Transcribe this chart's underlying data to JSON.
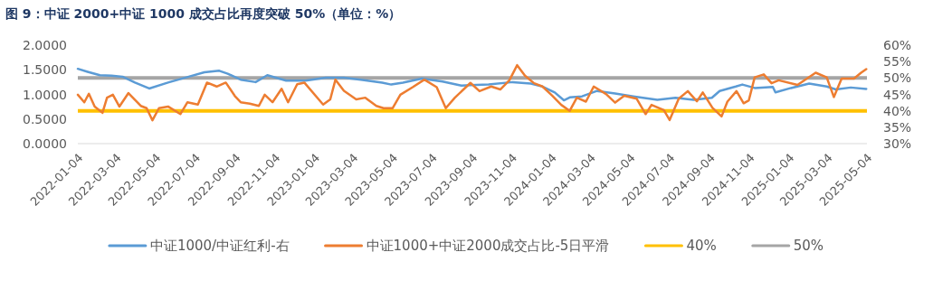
{
  "chart_data": {
    "type": "line",
    "title": "图 9：中证 2000+中证 1000 成交占比再度突破 50%（单位：%）",
    "xlim": [
      "2022-01-04",
      "2025-05-04"
    ],
    "xticks": [
      "2022-01-04",
      "2022-03-04",
      "2022-05-04",
      "2022-07-04",
      "2022-09-04",
      "2022-11-04",
      "2023-01-04",
      "2023-03-04",
      "2023-05-04",
      "2023-07-04",
      "2023-09-04",
      "2023-11-04",
      "2024-01-04",
      "2024-03-04",
      "2024-05-04",
      "2024-07-04",
      "2024-09-04",
      "2024-11-04",
      "2025-01-04",
      "2025-03-04",
      "2025-05-04"
    ],
    "ylim": [
      0,
      2
    ],
    "yticks": [
      {
        "value": 0,
        "label": "0.0000"
      },
      {
        "value": 0.5,
        "label": "0.5000"
      },
      {
        "value": 1,
        "label": "1.0000"
      },
      {
        "value": 1.5,
        "label": "1.5000"
      },
      {
        "value": 2,
        "label": "2.0000"
      }
    ],
    "y2lim": [
      30,
      60
    ],
    "y2ticks": [
      {
        "value": 30,
        "label": "30%"
      },
      {
        "value": 35,
        "label": "35%"
      },
      {
        "value": 40,
        "label": "40%"
      },
      {
        "value": 45,
        "label": "45%"
      },
      {
        "value": 50,
        "label": "50%"
      },
      {
        "value": 55,
        "label": "55%"
      },
      {
        "value": 60,
        "label": "60%"
      }
    ],
    "legend": "bottom",
    "series": [
      {
        "name": "中证1000/中证红利-右",
        "color": "#5b9bd5",
        "x": [
          "2022-01-04",
          "2022-01-19",
          "2022-02-07",
          "2022-02-25",
          "2022-03-14",
          "2022-04-02",
          "2022-04-24",
          "2022-05-23",
          "2022-06-24",
          "2022-07-18",
          "2022-08-10",
          "2022-08-23",
          "2022-09-12",
          "2022-10-05",
          "2022-10-23",
          "2022-11-21",
          "2022-12-21",
          "2023-01-21",
          "2023-02-18",
          "2023-03-16",
          "2023-04-18",
          "2023-05-02",
          "2023-05-20",
          "2023-06-18",
          "2023-07-20",
          "2023-08-18",
          "2023-09-01",
          "2023-09-29",
          "2023-11-05",
          "2023-12-03",
          "2023-12-21",
          "2024-01-09",
          "2024-01-23",
          "2024-02-01",
          "2024-02-20",
          "2024-03-14",
          "2024-04-11",
          "2024-05-09",
          "2024-06-15",
          "2024-07-13",
          "2024-08-10",
          "2024-09-07",
          "2024-09-19",
          "2024-10-14",
          "2024-10-24",
          "2024-11-12",
          "2024-12-10",
          "2024-12-14",
          "2025-01-07",
          "2025-02-04",
          "2025-03-03",
          "2025-03-17",
          "2025-04-09",
          "2025-05-03"
        ],
        "values": [
          1.52,
          1.46,
          1.39,
          1.38,
          1.36,
          1.24,
          1.12,
          1.24,
          1.36,
          1.45,
          1.48,
          1.42,
          1.3,
          1.25,
          1.39,
          1.28,
          1.28,
          1.34,
          1.34,
          1.3,
          1.24,
          1.2,
          1.24,
          1.32,
          1.26,
          1.18,
          1.19,
          1.2,
          1.25,
          1.22,
          1.16,
          1.04,
          0.88,
          0.94,
          0.96,
          1.07,
          1.02,
          0.96,
          0.89,
          0.93,
          0.89,
          0.93,
          1.07,
          1.16,
          1.2,
          1.13,
          1.15,
          1.04,
          1.13,
          1.22,
          1.16,
          1.1,
          1.14,
          1.11
        ]
      },
      {
        "name": "中证1000+中证2000成交占比-5日平滑",
        "color": "#ed7d31",
        "axis": "y2",
        "x": [
          "2022-01-04",
          "2022-01-14",
          "2022-01-21",
          "2022-01-30",
          "2022-02-11",
          "2022-02-18",
          "2022-02-27",
          "2022-03-09",
          "2022-03-23",
          "2022-04-11",
          "2022-04-20",
          "2022-04-29",
          "2022-05-09",
          "2022-05-23",
          "2022-06-11",
          "2022-06-22",
          "2022-07-08",
          "2022-07-22",
          "2022-08-06",
          "2022-08-20",
          "2022-09-03",
          "2022-09-12",
          "2022-09-26",
          "2022-10-10",
          "2022-10-19",
          "2022-10-31",
          "2022-11-14",
          "2022-11-24",
          "2022-12-08",
          "2022-12-19",
          "2023-01-17",
          "2023-01-28",
          "2023-02-05",
          "2023-02-18",
          "2023-03-09",
          "2023-03-23",
          "2023-04-09",
          "2023-04-20",
          "2023-05-04",
          "2023-05-16",
          "2023-06-04",
          "2023-06-22",
          "2023-07-11",
          "2023-07-25",
          "2023-08-08",
          "2023-09-01",
          "2023-09-15",
          "2023-10-03",
          "2023-10-17",
          "2023-10-31",
          "2023-11-12",
          "2023-11-24",
          "2023-12-08",
          "2023-12-21",
          "2024-01-05",
          "2024-01-19",
          "2024-02-01",
          "2024-02-12",
          "2024-02-26",
          "2024-03-09",
          "2024-03-28",
          "2024-04-11",
          "2024-04-25",
          "2024-05-14",
          "2024-05-28",
          "2024-06-06",
          "2024-06-25",
          "2024-07-04",
          "2024-07-18",
          "2024-08-01",
          "2024-08-15",
          "2024-08-24",
          "2024-09-08",
          "2024-09-22",
          "2024-10-01",
          "2024-10-15",
          "2024-10-26",
          "2024-11-03",
          "2024-11-12",
          "2024-11-26",
          "2024-12-08",
          "2024-12-19",
          "2025-01-17",
          "2025-02-14",
          "2025-03-03",
          "2025-03-14",
          "2025-03-26",
          "2025-04-14",
          "2025-04-25",
          "2025-05-03"
        ],
        "values": [
          44.9,
          42.6,
          45.2,
          41.3,
          39.4,
          44.0,
          44.9,
          41.3,
          45.4,
          41.5,
          40.8,
          37.1,
          40.8,
          41.3,
          39.0,
          42.6,
          41.9,
          48.6,
          47.4,
          48.6,
          44.5,
          42.6,
          42.2,
          41.5,
          44.9,
          42.6,
          46.7,
          42.6,
          48.1,
          48.6,
          41.9,
          43.5,
          49.5,
          46.1,
          43.5,
          44.0,
          41.5,
          40.8,
          40.8,
          44.9,
          47.2,
          49.5,
          47.2,
          40.8,
          44.0,
          48.5,
          46.0,
          47.4,
          46.5,
          49.3,
          53.9,
          50.7,
          48.4,
          47.4,
          44.6,
          41.8,
          40.0,
          44.0,
          42.8,
          47.4,
          45.1,
          42.5,
          44.6,
          43.7,
          39.0,
          41.8,
          40.2,
          37.2,
          43.7,
          46.0,
          42.9,
          45.6,
          40.9,
          38.3,
          42.8,
          46.0,
          42.3,
          43.2,
          50.2,
          51.1,
          48.4,
          49.3,
          47.9,
          51.6,
          50.2,
          44.2,
          49.8,
          49.8,
          51.6,
          52.7
        ]
      }
    ],
    "ref_lines": [
      {
        "axis": "y2",
        "value": 40,
        "label": "40%",
        "color": "#ffc000"
      },
      {
        "axis": "y2",
        "value": 50,
        "label": "50%",
        "color": "#a5a5a5"
      }
    ]
  }
}
